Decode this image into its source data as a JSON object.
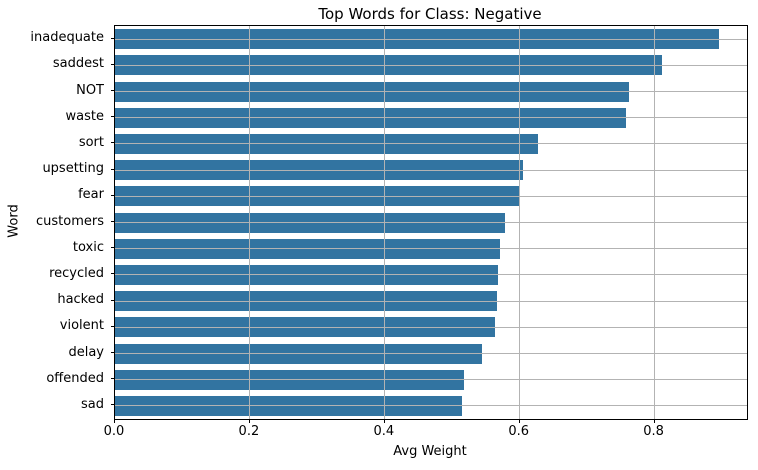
{
  "chart_data": {
    "type": "bar",
    "orientation": "horizontal",
    "title": "Top Words for Class: Negative",
    "xlabel": "Avg Weight",
    "ylabel": "Word",
    "categories": [
      "inadequate",
      "saddest",
      "NOT",
      "waste",
      "sort",
      "upsetting",
      "fear",
      "customers",
      "toxic",
      "recycled",
      "hacked",
      "violent",
      "delay",
      "offended",
      "sad"
    ],
    "values": [
      0.896,
      0.811,
      0.762,
      0.758,
      0.627,
      0.605,
      0.6,
      0.578,
      0.57,
      0.568,
      0.566,
      0.563,
      0.544,
      0.518,
      0.514
    ],
    "xlim": [
      0,
      0.937
    ],
    "xticks": [
      0.0,
      0.2,
      0.4,
      0.6,
      0.8
    ],
    "xtick_labels": [
      "0.0",
      "0.2",
      "0.4",
      "0.6",
      "0.8"
    ],
    "grid": true,
    "grid_on_top": true,
    "legend": "none",
    "bar_color": "#3274a1",
    "grid_color": "#b3b3b3",
    "spine_color": "#000000",
    "text_color": "#000000",
    "background_color": "#ffffff"
  }
}
